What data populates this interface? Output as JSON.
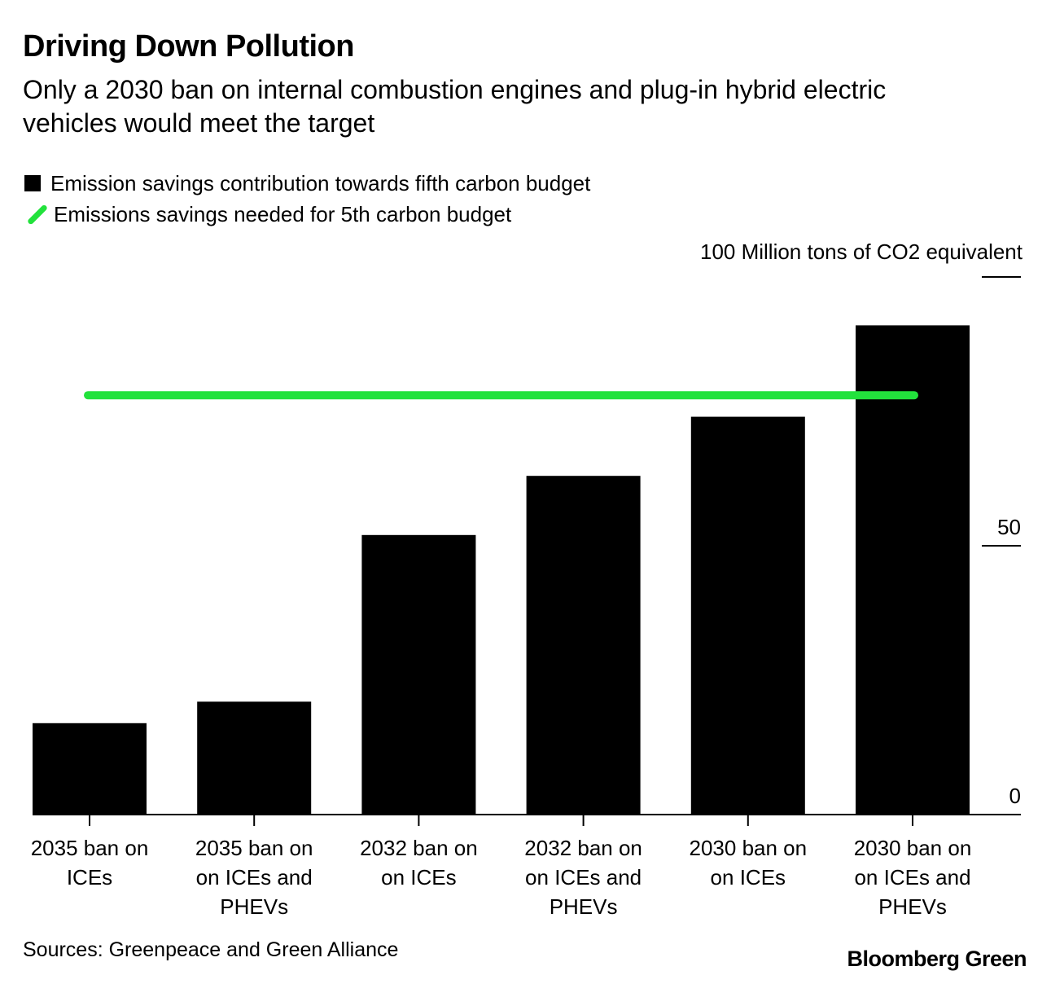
{
  "title": "Driving Down Pollution",
  "subtitle": "Only a 2030 ban on internal combustion engines and plug-in hybrid electric vehicles would meet the target",
  "legend": {
    "bar_label": "Emission savings contribution towards fifth carbon budget",
    "line_label": "Emissions savings needed for 5th carbon budget"
  },
  "unit_label": "100 Million tons of CO2 equivalent",
  "source": "Sources: Greenpeace and Green Alliance",
  "brand": "Bloomberg Green",
  "colors": {
    "bar": "#000000",
    "target_line": "#22e23c"
  },
  "chart_data": {
    "type": "bar",
    "title": "Driving Down Pollution",
    "xlabel": "",
    "ylabel": "100 Million tons of CO2 equivalent",
    "ylim": [
      0,
      100
    ],
    "yticks": [
      0,
      50,
      100
    ],
    "ytick_labels": [
      "0",
      "50",
      ""
    ],
    "categories": [
      [
        "2035 ban on",
        "ICEs"
      ],
      [
        "2035 ban on",
        "on ICEs and",
        "PHEVs"
      ],
      [
        "2032 ban on",
        "on ICEs"
      ],
      [
        "2032 ban on",
        "on ICEs and",
        "PHEVs"
      ],
      [
        "2030 ban on",
        "on ICEs"
      ],
      [
        "2030 ban on",
        "on ICEs and",
        "PHEVs"
      ]
    ],
    "series": [
      {
        "name": "Emission savings contribution towards fifth carbon budget",
        "values": [
          17,
          21,
          52,
          63,
          74,
          91
        ]
      }
    ],
    "reference_line": {
      "name": "Emissions savings needed for 5th carbon budget",
      "value": 78
    },
    "legend_position": "top-left"
  }
}
